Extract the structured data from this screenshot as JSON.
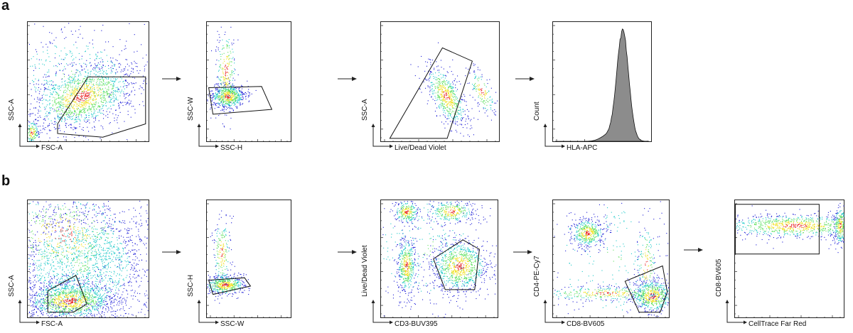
{
  "figure": {
    "panel_a_label": "a",
    "panel_b_label": "b"
  },
  "colors": {
    "density_low": "#1a1ad6",
    "density_mid": "#19c8c8",
    "density_midhigh": "#5ee05e",
    "density_high": "#f0e020",
    "density_peak": "#e81e1e",
    "gate": "#111111",
    "histogram_fill": "#8c8c8c"
  },
  "chart_data": [
    {
      "type": "scatter",
      "row": "a",
      "xlabel": "FSC-A",
      "ylabel": "SSC-A"
    },
    {
      "type": "scatter",
      "row": "a",
      "xlabel": "SSC-H",
      "ylabel": "SSC-W"
    },
    {
      "type": "scatter",
      "row": "a",
      "xlabel": "Live/Dead Violet",
      "ylabel": "SSC-A"
    },
    {
      "type": "area",
      "row": "a",
      "xlabel": "HLA-APC",
      "ylabel": "Count"
    },
    {
      "type": "scatter",
      "row": "b",
      "xlabel": "FSC-A",
      "ylabel": "SSC-A"
    },
    {
      "type": "scatter",
      "row": "b",
      "xlabel": "SSC-W",
      "ylabel": "SSC-H"
    },
    {
      "type": "scatter",
      "row": "b",
      "xlabel": "CD3-BUV395",
      "ylabel": "Live/Dead Violet"
    },
    {
      "type": "scatter",
      "row": "b",
      "xlabel": "CD8-BV605",
      "ylabel": "CD4-PE-Cy7"
    },
    {
      "type": "scatter",
      "row": "b",
      "xlabel": "CellTrace Far Red",
      "ylabel": "CD8-BV605"
    }
  ]
}
